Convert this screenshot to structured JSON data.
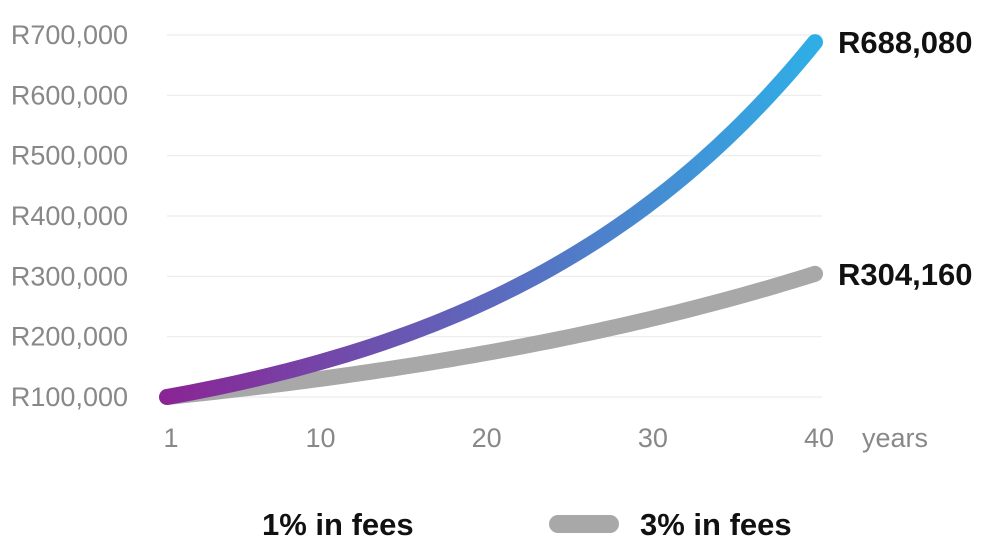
{
  "chart_data": {
    "type": "line",
    "y_tick_labels": [
      "R100,000",
      "R200,000",
      "R300,000",
      "R400,000",
      "R500,000",
      "R600,000",
      "R700,000"
    ],
    "y_ticks": [
      100000,
      200000,
      300000,
      400000,
      500000,
      600000,
      700000
    ],
    "x_tick_labels": [
      "1",
      "10",
      "20",
      "30",
      "40"
    ],
    "x_ticks": [
      1,
      10,
      20,
      30,
      40
    ],
    "x_unit": "years",
    "xlim": [
      1,
      40
    ],
    "ylim": [
      100000,
      700000
    ],
    "grid": true,
    "legend_position": "bottom",
    "series": [
      {
        "name": "1% in fees",
        "start_value": 100000,
        "end_value": 688080,
        "end_label": "R688,080",
        "gradient": [
          "#8A2595",
          "#2FAEE6"
        ]
      },
      {
        "name": "3% in fees",
        "start_value": 100000,
        "end_value": 304160,
        "end_label": "R304,160",
        "color": "#A8A8A8"
      }
    ]
  }
}
